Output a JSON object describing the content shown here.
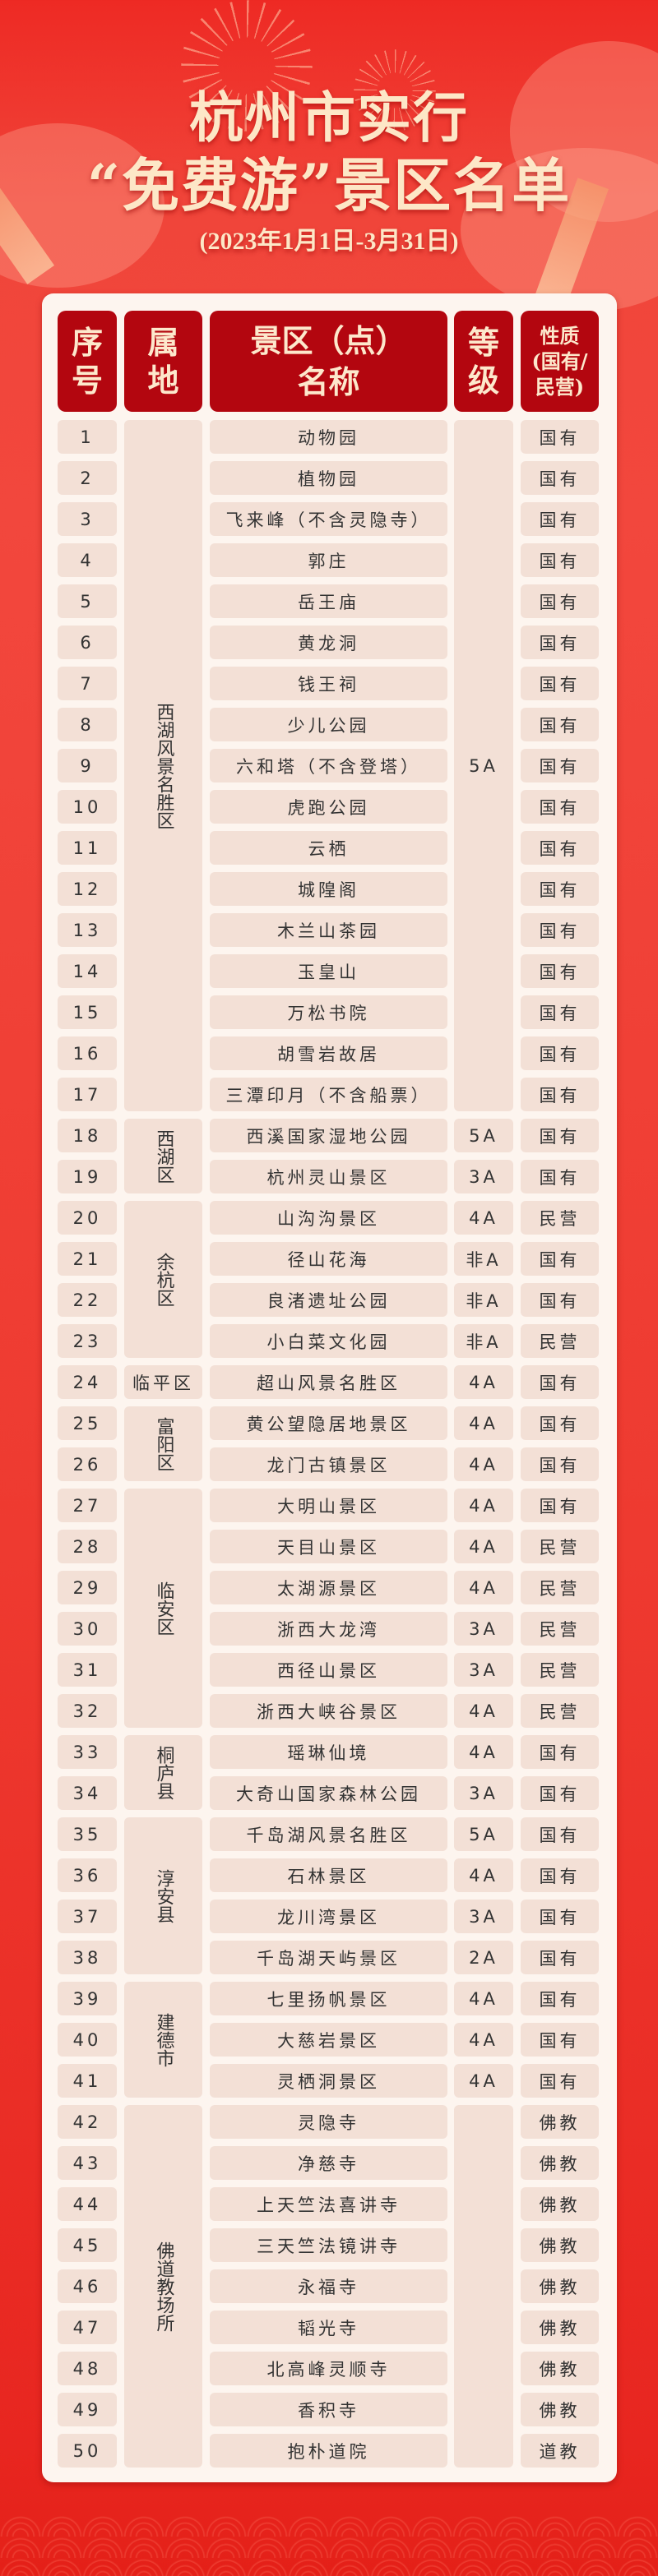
{
  "header": {
    "title_line1": "杭州市实行",
    "title_line2": "“免费游”景区名单",
    "date_range": "(2023年1月1日-3月31日)"
  },
  "colors": {
    "background": "#ee3a30",
    "header_cell": "#b3060f",
    "header_text": "#fde8cc",
    "cell": "#f3e0d6",
    "panel": "#fdf5ef"
  },
  "table": {
    "columns": [
      "序号",
      "属地",
      "景区（点）名称",
      "等级",
      "性质（国有/民营）"
    ],
    "column_display": {
      "no": "序号",
      "district": "属地",
      "name_line1": "景区（点）",
      "name_line2": "名称",
      "level": "等级",
      "nature_line1": "性质",
      "nature_line2": "(国有/",
      "nature_line3": "民营)"
    },
    "districts": [
      {
        "name": "西湖风景名胜区",
        "from": 1,
        "to": 17
      },
      {
        "name": "西湖区",
        "from": 18,
        "to": 19
      },
      {
        "name": "余杭区",
        "from": 20,
        "to": 23
      },
      {
        "name": "临平区",
        "from": 24,
        "to": 24
      },
      {
        "name": "富阳区",
        "from": 25,
        "to": 26
      },
      {
        "name": "临安区",
        "from": 27,
        "to": 32
      },
      {
        "name": "桐庐县",
        "from": 33,
        "to": 34
      },
      {
        "name": "淳安县",
        "from": 35,
        "to": 38
      },
      {
        "name": "建德市",
        "from": 39,
        "to": 41
      },
      {
        "name": "佛道教场所",
        "from": 42,
        "to": 50
      }
    ],
    "level_cells": [
      {
        "text": "5A",
        "from": 1,
        "to": 17
      },
      {
        "text": "5A",
        "from": 18,
        "to": 18
      },
      {
        "text": "3A",
        "from": 19,
        "to": 19
      },
      {
        "text": "4A",
        "from": 20,
        "to": 20
      },
      {
        "text": "非A",
        "from": 21,
        "to": 21
      },
      {
        "text": "非A",
        "from": 22,
        "to": 22
      },
      {
        "text": "非A",
        "from": 23,
        "to": 23
      },
      {
        "text": "4A",
        "from": 24,
        "to": 24
      },
      {
        "text": "4A",
        "from": 25,
        "to": 25
      },
      {
        "text": "4A",
        "from": 26,
        "to": 26
      },
      {
        "text": "4A",
        "from": 27,
        "to": 27
      },
      {
        "text": "4A",
        "from": 28,
        "to": 28
      },
      {
        "text": "4A",
        "from": 29,
        "to": 29
      },
      {
        "text": "3A",
        "from": 30,
        "to": 30
      },
      {
        "text": "3A",
        "from": 31,
        "to": 31
      },
      {
        "text": "4A",
        "from": 32,
        "to": 32
      },
      {
        "text": "4A",
        "from": 33,
        "to": 33
      },
      {
        "text": "3A",
        "from": 34,
        "to": 34
      },
      {
        "text": "5A",
        "from": 35,
        "to": 35
      },
      {
        "text": "4A",
        "from": 36,
        "to": 36
      },
      {
        "text": "3A",
        "from": 37,
        "to": 37
      },
      {
        "text": "2A",
        "from": 38,
        "to": 38
      },
      {
        "text": "4A",
        "from": 39,
        "to": 39
      },
      {
        "text": "4A",
        "from": 40,
        "to": 40
      },
      {
        "text": "4A",
        "from": 41,
        "to": 41
      },
      {
        "text": "",
        "from": 42,
        "to": 50
      }
    ],
    "rows": [
      {
        "no": "1",
        "name": "动物园",
        "nature": "国有"
      },
      {
        "no": "2",
        "name": "植物园",
        "nature": "国有"
      },
      {
        "no": "3",
        "name": "飞来峰（不含灵隐寺）",
        "nature": "国有"
      },
      {
        "no": "4",
        "name": "郭庄",
        "nature": "国有"
      },
      {
        "no": "5",
        "name": "岳王庙",
        "nature": "国有"
      },
      {
        "no": "6",
        "name": "黄龙洞",
        "nature": "国有"
      },
      {
        "no": "7",
        "name": "钱王祠",
        "nature": "国有"
      },
      {
        "no": "8",
        "name": "少儿公园",
        "nature": "国有"
      },
      {
        "no": "9",
        "name": "六和塔（不含登塔）",
        "nature": "国有"
      },
      {
        "no": "10",
        "name": "虎跑公园",
        "nature": "国有"
      },
      {
        "no": "11",
        "name": "云栖",
        "nature": "国有"
      },
      {
        "no": "12",
        "name": "城隍阁",
        "nature": "国有"
      },
      {
        "no": "13",
        "name": "木兰山茶园",
        "nature": "国有"
      },
      {
        "no": "14",
        "name": "玉皇山",
        "nature": "国有"
      },
      {
        "no": "15",
        "name": "万松书院",
        "nature": "国有"
      },
      {
        "no": "16",
        "name": "胡雪岩故居",
        "nature": "国有"
      },
      {
        "no": "17",
        "name": "三潭印月（不含船票）",
        "nature": "国有"
      },
      {
        "no": "18",
        "name": "西溪国家湿地公园",
        "nature": "国有"
      },
      {
        "no": "19",
        "name": "杭州灵山景区",
        "nature": "国有"
      },
      {
        "no": "20",
        "name": "山沟沟景区",
        "nature": "民营"
      },
      {
        "no": "21",
        "name": "径山花海",
        "nature": "国有"
      },
      {
        "no": "22",
        "name": "良渚遗址公园",
        "nature": "国有"
      },
      {
        "no": "23",
        "name": "小白菜文化园",
        "nature": "民营"
      },
      {
        "no": "24",
        "name": "超山风景名胜区",
        "nature": "国有"
      },
      {
        "no": "25",
        "name": "黄公望隐居地景区",
        "nature": "国有"
      },
      {
        "no": "26",
        "name": "龙门古镇景区",
        "nature": "国有"
      },
      {
        "no": "27",
        "name": "大明山景区",
        "nature": "国有"
      },
      {
        "no": "28",
        "name": "天目山景区",
        "nature": "民营"
      },
      {
        "no": "29",
        "name": "太湖源景区",
        "nature": "民营"
      },
      {
        "no": "30",
        "name": "浙西大龙湾",
        "nature": "民营"
      },
      {
        "no": "31",
        "name": "西径山景区",
        "nature": "民营"
      },
      {
        "no": "32",
        "name": "浙西大峡谷景区",
        "nature": "民营"
      },
      {
        "no": "33",
        "name": "瑶琳仙境",
        "nature": "国有"
      },
      {
        "no": "34",
        "name": "大奇山国家森林公园",
        "nature": "国有"
      },
      {
        "no": "35",
        "name": "千岛湖风景名胜区",
        "nature": "国有"
      },
      {
        "no": "36",
        "name": "石林景区",
        "nature": "国有"
      },
      {
        "no": "37",
        "name": "龙川湾景区",
        "nature": "国有"
      },
      {
        "no": "38",
        "name": "千岛湖天屿景区",
        "nature": "国有"
      },
      {
        "no": "39",
        "name": "七里扬帆景区",
        "nature": "国有"
      },
      {
        "no": "40",
        "name": "大慈岩景区",
        "nature": "国有"
      },
      {
        "no": "41",
        "name": "灵栖洞景区",
        "nature": "国有"
      },
      {
        "no": "42",
        "name": "灵隐寺",
        "nature": "佛教"
      },
      {
        "no": "43",
        "name": "净慈寺",
        "nature": "佛教"
      },
      {
        "no": "44",
        "name": "上天竺法喜讲寺",
        "nature": "佛教"
      },
      {
        "no": "45",
        "name": "三天竺法镜讲寺",
        "nature": "佛教"
      },
      {
        "no": "46",
        "name": "永福寺",
        "nature": "佛教"
      },
      {
        "no": "47",
        "name": "韬光寺",
        "nature": "佛教"
      },
      {
        "no": "48",
        "name": "北高峰灵顺寺",
        "nature": "佛教"
      },
      {
        "no": "49",
        "name": "香积寺",
        "nature": "佛教"
      },
      {
        "no": "50",
        "name": "抱朴道院",
        "nature": "道教"
      }
    ]
  }
}
